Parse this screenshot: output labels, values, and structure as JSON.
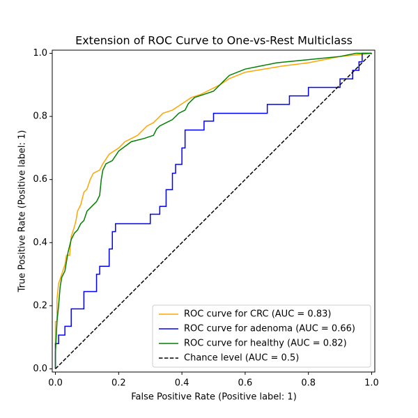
{
  "chart_data": {
    "type": "line",
    "title": "Extension of ROC Curve to One-vs-Rest Multiclass",
    "x_label": "False Positive Rate (Positive label: 1)",
    "y_label": "True Positive Rate (Positive label: 1)",
    "xlim": [
      -0.01,
      1.01
    ],
    "ylim": [
      -0.01,
      1.01
    ],
    "xticks": [
      {
        "value": 0,
        "label": "0.0"
      },
      0.2,
      0.4,
      0.6,
      0.8,
      {
        "value": 1,
        "label": "1.0"
      }
    ],
    "yticks": [
      {
        "value": 0,
        "label": "0.0"
      },
      0.2,
      0.4,
      0.6,
      0.8,
      {
        "value": 1,
        "label": "1.0"
      }
    ],
    "legend": "lower right",
    "series": [
      {
        "name": "ROC curve for CRC (AUC = 0.83)",
        "color": "orange",
        "style": "solid",
        "x": [
          0,
          0,
          0.005,
          0.005,
          0.01,
          0.02,
          0.03,
          0.035,
          0.045,
          0.05,
          0.06,
          0.065,
          0.07,
          0.08,
          0.09,
          0.1,
          0.11,
          0.12,
          0.14,
          0.15,
          0.17,
          0.2,
          0.22,
          0.26,
          0.29,
          0.31,
          0.34,
          0.37,
          0.4,
          0.43,
          0.46,
          0.48,
          0.52,
          0.55,
          0.6,
          0.66,
          0.72,
          0.8,
          0.85,
          0.9,
          1
        ],
        "values": [
          0,
          0.15,
          0.15,
          0.22,
          0.27,
          0.3,
          0.33,
          0.36,
          0.36,
          0.42,
          0.45,
          0.47,
          0.5,
          0.52,
          0.56,
          0.57,
          0.6,
          0.62,
          0.63,
          0.65,
          0.68,
          0.7,
          0.72,
          0.74,
          0.77,
          0.78,
          0.81,
          0.82,
          0.84,
          0.86,
          0.87,
          0.88,
          0.9,
          0.92,
          0.94,
          0.95,
          0.96,
          0.97,
          0.98,
          0.99,
          1
        ]
      },
      {
        "name": "ROC curve for adenoma (AUC = 0.66)",
        "color": "blue",
        "style": "solid",
        "x": [
          0,
          0,
          0.01,
          0.01,
          0.03,
          0.03,
          0.05,
          0.05,
          0.09,
          0.09,
          0.13,
          0.13,
          0.14,
          0.14,
          0.17,
          0.17,
          0.18,
          0.18,
          0.19,
          0.19,
          0.3,
          0.3,
          0.33,
          0.33,
          0.35,
          0.35,
          0.37,
          0.37,
          0.38,
          0.38,
          0.4,
          0.4,
          0.41,
          0.41,
          0.47,
          0.47,
          0.5,
          0.5,
          0.67,
          0.67,
          0.74,
          0.74,
          0.8,
          0.8,
          0.9,
          0.9,
          0.94,
          0.94,
          0.96,
          0.96,
          0.97,
          0.97,
          1
        ],
        "values": [
          0,
          0.08,
          0.08,
          0.107,
          0.107,
          0.135,
          0.135,
          0.19,
          0.19,
          0.245,
          0.245,
          0.3,
          0.3,
          0.325,
          0.325,
          0.38,
          0.38,
          0.435,
          0.435,
          0.46,
          0.46,
          0.49,
          0.49,
          0.515,
          0.515,
          0.568,
          0.568,
          0.62,
          0.62,
          0.648,
          0.648,
          0.7,
          0.7,
          0.757,
          0.757,
          0.785,
          0.785,
          0.81,
          0.81,
          0.838,
          0.838,
          0.865,
          0.865,
          0.892,
          0.892,
          0.919,
          0.919,
          0.946,
          0.946,
          0.973,
          0.973,
          1,
          1
        ]
      },
      {
        "name": "ROC curve for healthy (AUC = 0.82)",
        "color": "green",
        "style": "solid",
        "x": [
          0,
          0,
          0.005,
          0.01,
          0.015,
          0.02,
          0.03,
          0.04,
          0.05,
          0.06,
          0.07,
          0.08,
          0.09,
          0.1,
          0.12,
          0.13,
          0.14,
          0.145,
          0.15,
          0.16,
          0.18,
          0.2,
          0.24,
          0.28,
          0.31,
          0.32,
          0.33,
          0.35,
          0.37,
          0.39,
          0.41,
          0.42,
          0.44,
          0.47,
          0.5,
          0.52,
          0.55,
          0.6,
          0.65,
          0.7,
          0.8,
          0.9,
          0.95,
          1
        ],
        "values": [
          0,
          0.05,
          0.15,
          0.2,
          0.26,
          0.29,
          0.31,
          0.37,
          0.41,
          0.43,
          0.44,
          0.46,
          0.47,
          0.5,
          0.52,
          0.53,
          0.55,
          0.6,
          0.63,
          0.65,
          0.66,
          0.69,
          0.72,
          0.73,
          0.74,
          0.76,
          0.77,
          0.78,
          0.79,
          0.81,
          0.82,
          0.84,
          0.86,
          0.87,
          0.88,
          0.9,
          0.93,
          0.95,
          0.96,
          0.97,
          0.98,
          0.99,
          1,
          1
        ]
      },
      {
        "name": "Chance level (AUC = 0.5)",
        "color": "black",
        "style": "dashed",
        "x": [
          0,
          1
        ],
        "values": [
          0,
          1
        ]
      }
    ]
  }
}
